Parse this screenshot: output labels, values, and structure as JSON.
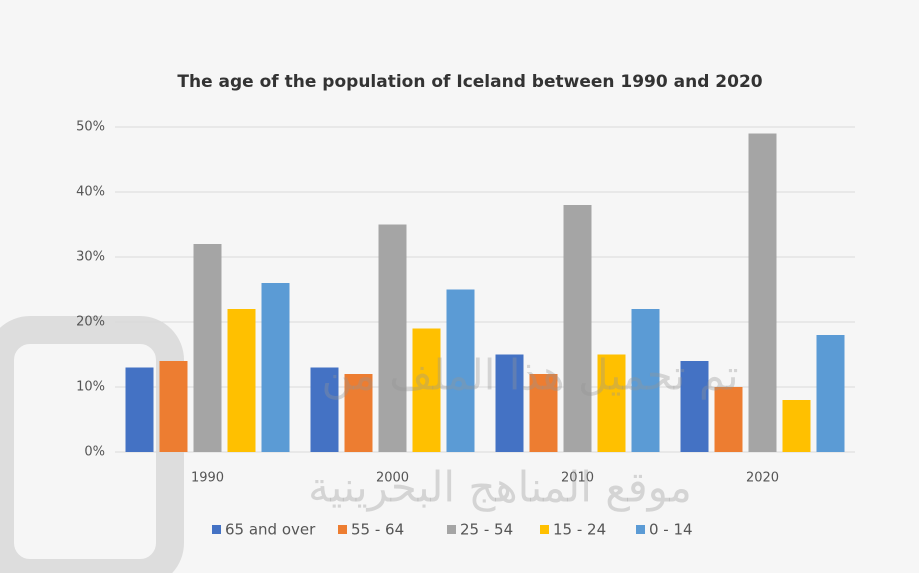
{
  "chart_data": {
    "type": "bar",
    "title": "The age of the population of Iceland between 1990 and 2020",
    "categories": [
      "1990",
      "2000",
      "2010",
      "2020"
    ],
    "series": [
      {
        "name": "65 and over",
        "color": "#4472c4",
        "values": [
          13,
          13,
          15,
          14
        ]
      },
      {
        "name": "55 - 64",
        "color": "#ed7d31",
        "values": [
          14,
          12,
          12,
          10
        ]
      },
      {
        "name": "25 - 54",
        "color": "#a5a5a5",
        "values": [
          32,
          35,
          38,
          49
        ]
      },
      {
        "name": "15 - 24",
        "color": "#ffc000",
        "values": [
          22,
          19,
          15,
          8
        ]
      },
      {
        "name": "0 - 14",
        "color": "#5b9bd5",
        "values": [
          26,
          25,
          22,
          18
        ]
      }
    ],
    "ylim": [
      0,
      50
    ],
    "yticks": [
      {
        "value": 0,
        "label": "0%"
      },
      {
        "value": 10,
        "label": "10%"
      },
      {
        "value": 20,
        "label": "20%"
      },
      {
        "value": 30,
        "label": "30%"
      },
      {
        "value": 40,
        "label": "40%"
      },
      {
        "value": 50,
        "label": "50%"
      }
    ],
    "grid": true,
    "legend": "bottom",
    "watermark": [
      "تم تحميل هذا الملف من",
      "موقع المناهج البحرينية"
    ]
  }
}
